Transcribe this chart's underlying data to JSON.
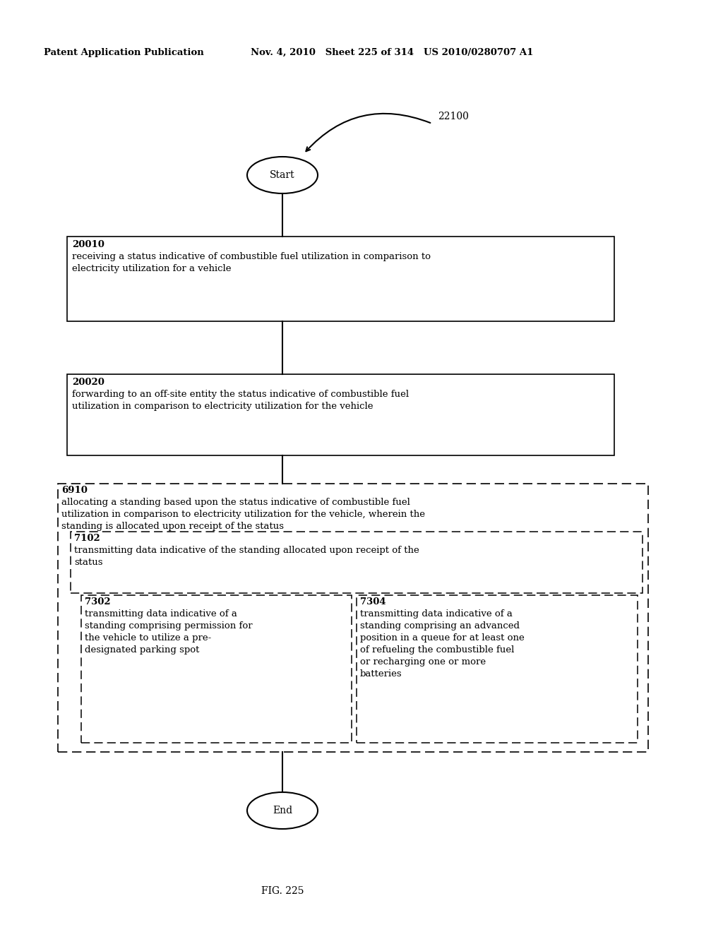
{
  "header_left": "Patent Application Publication",
  "header_mid": "Nov. 4, 2010   Sheet 225 of 314   US 2010/0280707 A1",
  "fig_label": "FIG. 225",
  "ref_number": "22100",
  "start_label": "Start",
  "end_label": "End",
  "box1_id": "20010",
  "box1_line1": "receiving a status indicative of combustible fuel utilization in comparison to",
  "box1_line2": "electricity utilization for a vehicle",
  "box2_id": "20020",
  "box2_line1": "forwarding to an off-site entity the status indicative of combustible fuel",
  "box2_line2": "utilization in comparison to electricity utilization for the vehicle",
  "outer_id": "6910",
  "outer_line1": "allocating a standing based upon the status indicative of combustible fuel",
  "outer_line2": "utilization in comparison to electricity utilization for the vehicle, wherein the",
  "outer_line3": "standing is allocated upon receipt of the status",
  "mid_id": "7102",
  "mid_line1": "transmitting data indicative of the standing allocated upon receipt of the",
  "mid_line2": "status",
  "left_id": "7302",
  "left_line1": "transmitting data indicative of a",
  "left_line2": "standing comprising permission for",
  "left_line3": "the vehicle to utilize a pre-",
  "left_line4": "designated parking spot",
  "right_id": "7304",
  "right_line1": "transmitting data indicative of a",
  "right_line2": "standing comprising an advanced",
  "right_line3": "position in a queue for at least one",
  "right_line4": "of refueling the combustible fuel",
  "right_line5": "or recharging one or more",
  "right_line6": "batteries",
  "bg_color": "#ffffff",
  "text_color": "#000000"
}
